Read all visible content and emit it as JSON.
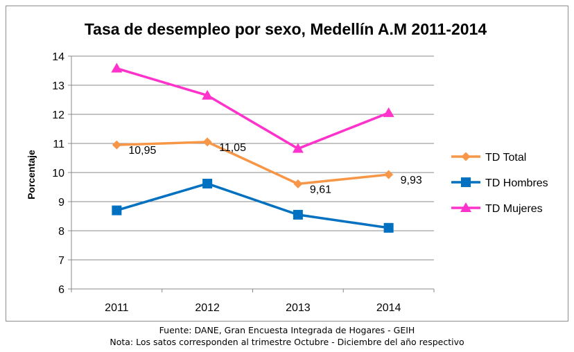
{
  "chart_data": {
    "type": "line",
    "title": "Tasa de desempleo por sexo,  Medellín A.M 2011-2014",
    "ylabel": "Porcentaje",
    "xlabel": "",
    "categories": [
      "2011",
      "2012",
      "2013",
      "2014"
    ],
    "ylim": [
      6,
      14
    ],
    "yticks": [
      "6",
      "7",
      "8",
      "9",
      "10",
      "11",
      "12",
      "13",
      "14"
    ],
    "grid": true,
    "legend_position": "right",
    "series": [
      {
        "name": "TD Total",
        "color": "#F79646",
        "marker": "diamond",
        "values": [
          10.95,
          11.05,
          9.61,
          9.93
        ],
        "data_labels": [
          "10,95",
          "11,05",
          "9,61",
          "9,93"
        ]
      },
      {
        "name": "TD Hombres",
        "color": "#0070C0",
        "marker": "square",
        "values": [
          8.7,
          9.62,
          8.55,
          8.1
        ]
      },
      {
        "name": "TD Mujeres",
        "color": "#FF33CC",
        "marker": "triangle",
        "values": [
          13.58,
          12.65,
          10.82,
          12.05
        ]
      }
    ]
  },
  "footnotes": {
    "source": "Fuente: DANE, Gran Encuesta Integrada de Hogares - GEIH",
    "note": "Nota: Los satos corresponden al trimestre Octubre - Diciembre del año respectivo"
  }
}
